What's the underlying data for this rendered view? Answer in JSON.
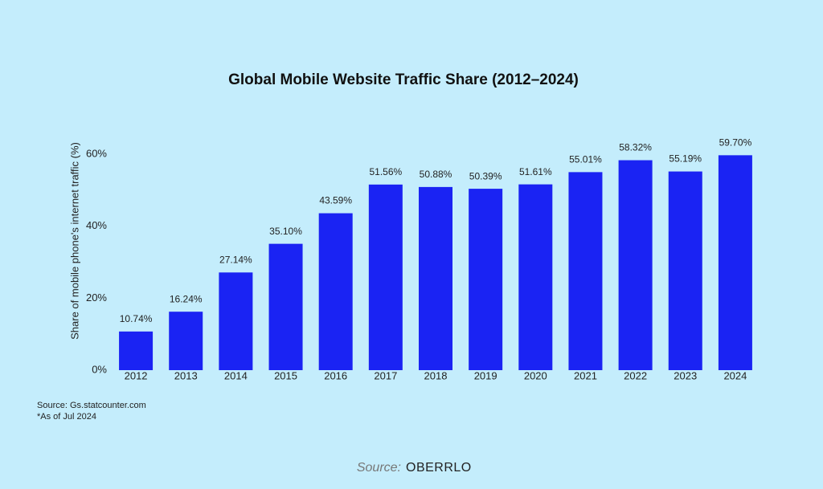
{
  "chart_data": {
    "type": "bar",
    "title": "Global Mobile Website Traffic Share (2012–2024)",
    "y_label": "Share of mobile phone's internet traffic (%)",
    "categories": [
      "2012",
      "2013",
      "2014",
      "2015",
      "2016",
      "2017",
      "2018",
      "2019",
      "2020",
      "2021",
      "2022",
      "2023",
      "2024"
    ],
    "values": [
      10.74,
      16.24,
      27.14,
      35.1,
      43.59,
      51.56,
      50.88,
      50.39,
      51.61,
      55.01,
      58.32,
      55.19,
      59.7
    ],
    "value_labels": [
      "10.74%",
      "16.24%",
      "27.14%",
      "35.10%",
      "43.59%",
      "51.56%",
      "50.88%",
      "50.39%",
      "51.61%",
      "55.01%",
      "58.32%",
      "55.19%",
      "59.70%"
    ],
    "color": "#1a23f3",
    "ylim": [
      0,
      60
    ],
    "yticks": [
      {
        "value": 0,
        "label": "0%"
      },
      {
        "value": 20,
        "label": "20%"
      },
      {
        "value": 40,
        "label": "40%"
      },
      {
        "value": 60,
        "label": "60%"
      }
    ],
    "grid": false,
    "notes": [
      "Source: Gs.statcounter.com",
      "*As of Jul 2024"
    ],
    "credit_label": "Source:",
    "credit": "OBERRLO"
  }
}
